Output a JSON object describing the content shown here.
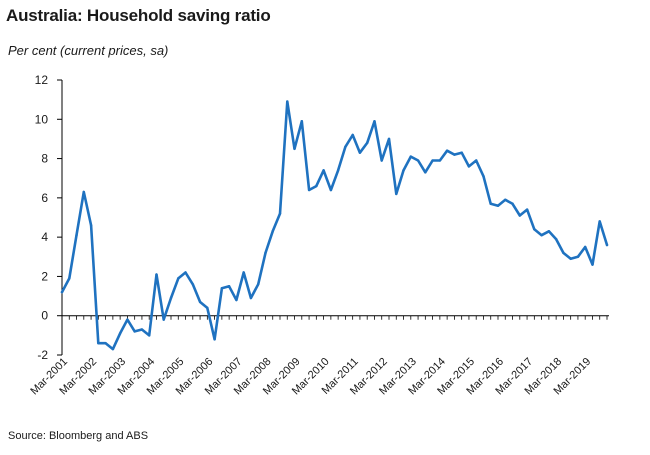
{
  "chart_data": {
    "type": "line",
    "title": "Australia: Household saving ratio",
    "subtitle": "Per cent (current prices, sa)",
    "source": "Source: Bloomberg and ABS",
    "xlabel": "",
    "ylabel": "",
    "ylim": [
      -2,
      12
    ],
    "yticks": [
      -2,
      0,
      2,
      4,
      6,
      8,
      10,
      12
    ],
    "xtick_labels": [
      "Mar-2001",
      "Mar-2002",
      "Mar-2003",
      "Mar-2004",
      "Mar-2005",
      "Mar-2006",
      "Mar-2007",
      "Mar-2008",
      "Mar-2009",
      "Mar-2010",
      "Mar-2011",
      "Mar-2012",
      "Mar-2013",
      "Mar-2014",
      "Mar-2015",
      "Mar-2016",
      "Mar-2017",
      "Mar-2018",
      "Mar-2019"
    ],
    "first_period": "Mar-2001",
    "color": "#1f72c0",
    "series": [
      {
        "name": "Household saving ratio",
        "values": [
          1.2,
          1.9,
          4.1,
          6.3,
          4.6,
          -1.4,
          -1.4,
          -1.7,
          -0.9,
          -0.2,
          -0.8,
          -0.7,
          -1.0,
          2.1,
          -0.2,
          0.9,
          1.9,
          2.2,
          1.6,
          0.7,
          0.4,
          -1.2,
          1.4,
          1.5,
          0.8,
          2.2,
          0.9,
          1.6,
          3.2,
          4.3,
          5.2,
          10.9,
          8.5,
          9.9,
          6.4,
          6.6,
          7.4,
          6.4,
          7.4,
          8.6,
          9.2,
          8.3,
          8.8,
          9.9,
          7.9,
          9.0,
          6.2,
          7.4,
          8.1,
          7.9,
          7.3,
          7.9,
          7.9,
          8.4,
          8.2,
          8.3,
          7.6,
          7.9,
          7.1,
          5.7,
          5.6,
          5.9,
          5.7,
          5.1,
          5.4,
          4.4,
          4.1,
          4.3,
          3.9,
          3.2,
          2.9,
          3.0,
          3.5,
          2.6,
          4.8,
          3.6
        ]
      }
    ]
  }
}
